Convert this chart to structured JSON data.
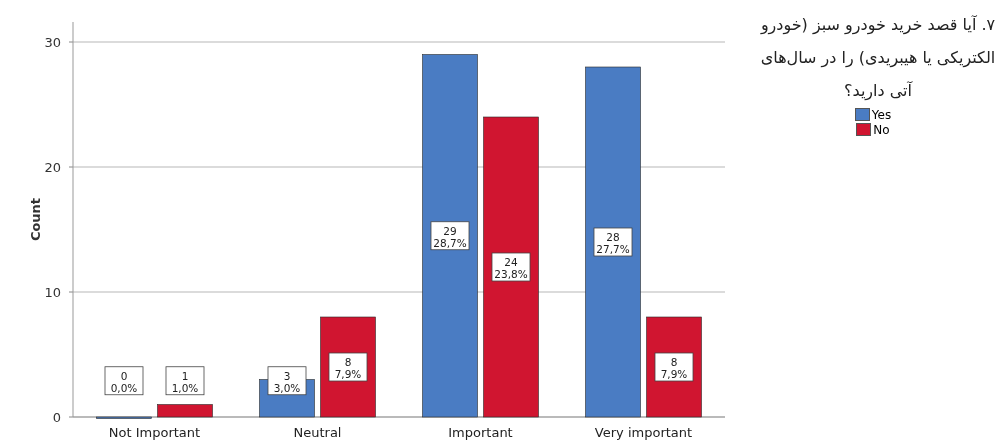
{
  "chart_data": {
    "type": "bar",
    "ylabel": "Count",
    "legend_title": "۷. آیا قصد خرید خودرو سبز (خودرو الکتریکی یا هیبریدی) را در سال‌های آتی دارید؟",
    "categories": [
      "Not Important",
      "Neutral",
      "Important",
      "Very important"
    ],
    "series": [
      {
        "name": "Yes",
        "color": "#4a7cc3",
        "values": [
          0,
          3,
          29,
          28
        ],
        "value_labels": [
          "0\n0,0%",
          "3\n3,0%",
          "29\n28,7%",
          "28\n27,7%"
        ]
      },
      {
        "name": "No",
        "color": "#d01530",
        "values": [
          1,
          8,
          24,
          8
        ],
        "value_labels": [
          "1\n1,0%",
          "8\n7,9%",
          "24\n23,8%",
          "8\n7,9%"
        ]
      }
    ],
    "ylim": [
      0,
      31.6
    ],
    "yticks": [
      0,
      10,
      20,
      30
    ],
    "grid": "y",
    "legend": "right"
  }
}
